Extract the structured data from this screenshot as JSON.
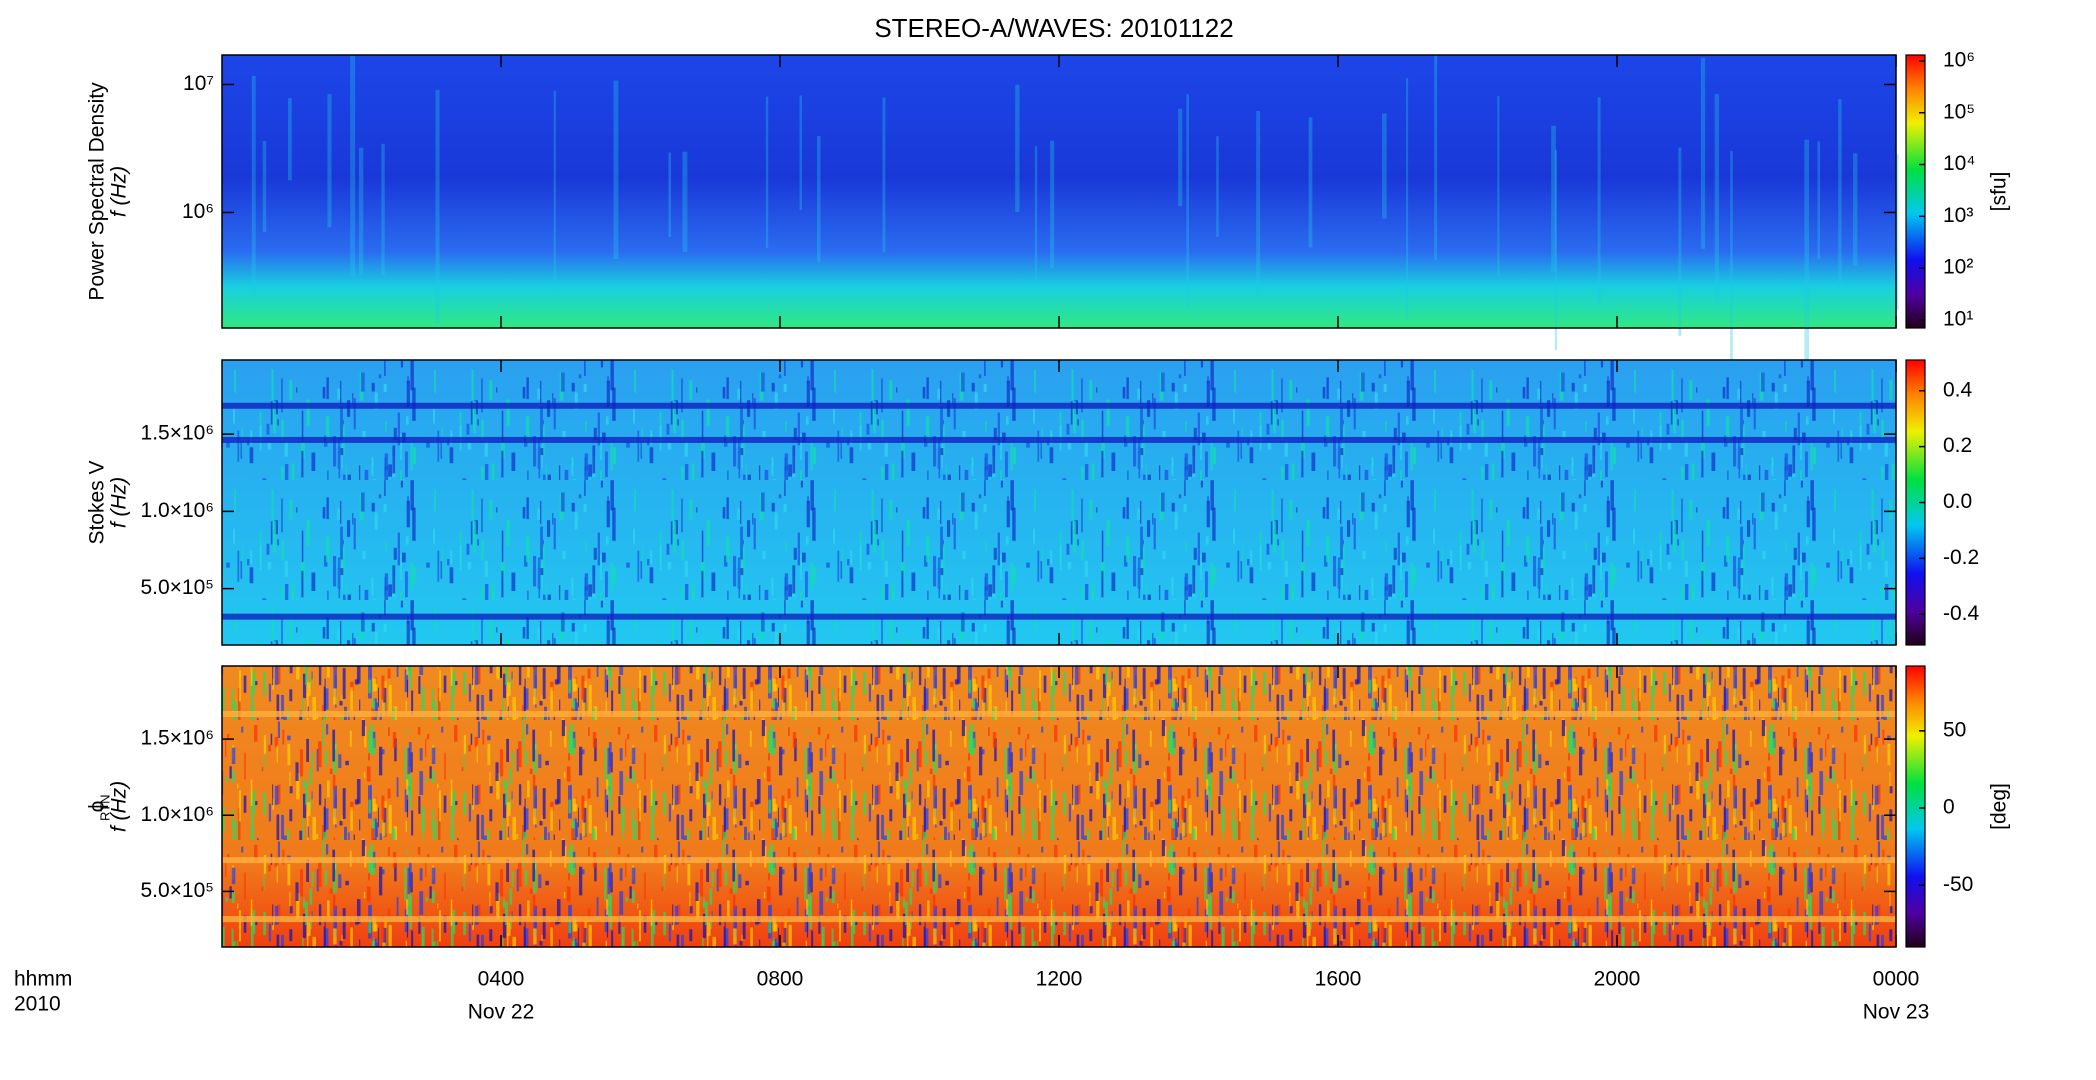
{
  "chart_data": [
    {
      "type": "heatmap",
      "title": "STEREO-A/WAVES: 20101122",
      "ylabel_lines": [
        "Power Spectral Density",
        "f (Hz)"
      ],
      "y_log": true,
      "ylim": [
        125000,
        17000000
      ],
      "yticks": [
        {
          "value": 1000000,
          "label": "10⁶"
        },
        {
          "value": 10000000,
          "label": "10⁷"
        }
      ],
      "colorbar": {
        "log": true,
        "lim": [
          7,
          1300000
        ],
        "label": "[sfu]",
        "ticks": [
          {
            "value": 10,
            "label": "10¹"
          },
          {
            "value": 100,
            "label": "10²"
          },
          {
            "value": 1000,
            "label": "10³"
          },
          {
            "value": 10000,
            "label": "10⁴"
          },
          {
            "value": 100000,
            "label": "10⁵"
          },
          {
            "value": 1000000,
            "label": "10⁶"
          }
        ]
      }
    },
    {
      "type": "heatmap",
      "ylabel_lines": [
        "Stokes V",
        "f (Hz)"
      ],
      "y_log": false,
      "ylim": [
        135000,
        1980000
      ],
      "yticks": [
        {
          "value": 500000,
          "label": "5.0×10⁵"
        },
        {
          "value": 1000000,
          "label": "1.0×10⁶"
        },
        {
          "value": 1500000,
          "label": "1.5×10⁶"
        }
      ],
      "colorbar": {
        "log": false,
        "lim": [
          -0.51,
          0.51
        ],
        "label": "",
        "ticks": [
          -0.4,
          -0.2,
          {
            "value": 0,
            "label": "0.0"
          },
          0.2,
          0.4
        ]
      }
    },
    {
      "type": "heatmap",
      "ylabel_lines": [
        "ϕ",
        "f (Hz)"
      ],
      "ylabel_subscript": "RTN",
      "y_log": false,
      "ylim": [
        135000,
        1980000
      ],
      "yticks": [
        {
          "value": 500000,
          "label": "5.0×10⁵"
        },
        {
          "value": 1000000,
          "label": "1.0×10⁶"
        },
        {
          "value": 1500000,
          "label": "1.5×10⁶"
        }
      ],
      "colorbar": {
        "log": false,
        "lim": [
          -90,
          92
        ],
        "label": "[deg]",
        "ticks": [
          -50,
          0,
          50
        ]
      },
      "xlim": [
        0,
        24
      ],
      "xticks": [
        {
          "value": 4,
          "label": "0400"
        },
        {
          "value": 8,
          "label": "0800"
        },
        {
          "value": 12,
          "label": "1200"
        },
        {
          "value": 16,
          "label": "1600"
        },
        {
          "value": 20,
          "label": "2000"
        },
        {
          "value": 24,
          "label": "0000"
        }
      ],
      "x_date_labels": [
        {
          "value": 4,
          "label": "Nov 22"
        },
        {
          "value": 24,
          "label": "Nov 23"
        }
      ],
      "xlabel": "hhmm",
      "x_year": "2010"
    }
  ]
}
